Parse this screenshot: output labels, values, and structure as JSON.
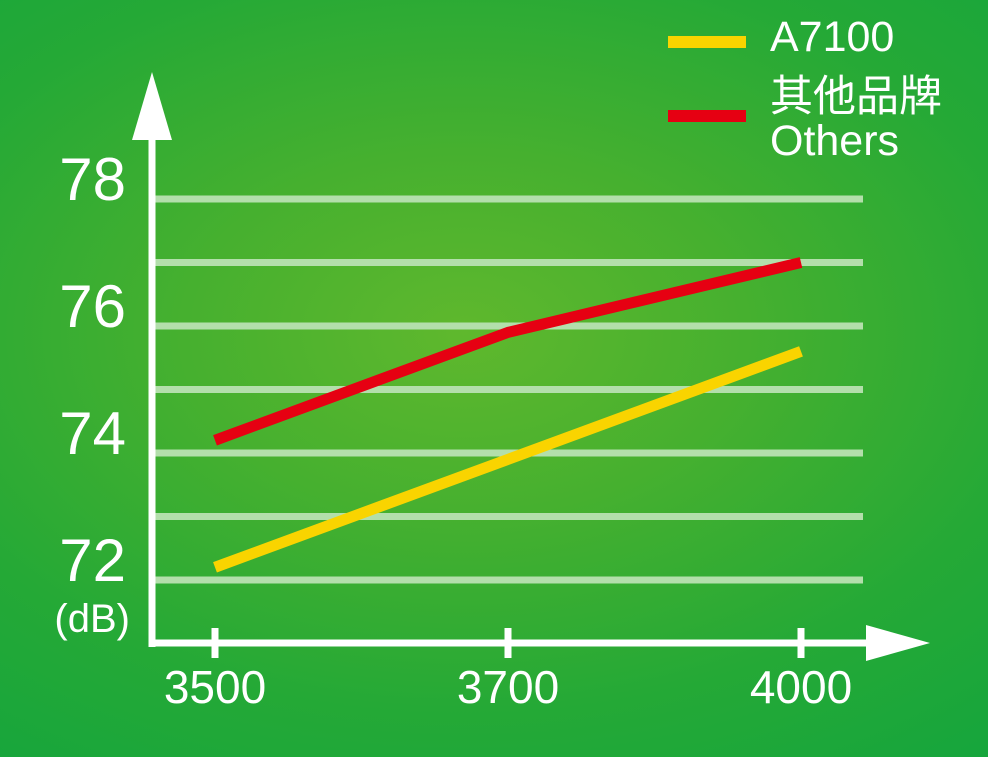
{
  "chart_data": {
    "type": "line",
    "categories": [
      "3500",
      "3700",
      "4000"
    ],
    "series": [
      {
        "id": "a7100",
        "name": "A7100",
        "color": "#f9d400",
        "values": [
          72.2,
          73.9,
          75.6
        ]
      },
      {
        "id": "others",
        "name": "其他品牌",
        "name_en": "Others",
        "color": "#e60012",
        "values": [
          74.2,
          75.9,
          77.0
        ]
      }
    ],
    "ylabel": "(dB)",
    "y_tick_labels": [
      78,
      76,
      74,
      72
    ],
    "gridline_values": [
      72,
      73,
      74,
      75,
      76,
      77,
      78
    ],
    "ylim": [
      72,
      78
    ],
    "grid": "horizontal",
    "legend_position": "top-right"
  },
  "legend": {
    "items": [
      {
        "label": "A7100",
        "color": "#f9d400"
      },
      {
        "label_zh": "其他品牌",
        "label_en": "Others",
        "color": "#e60012"
      }
    ]
  },
  "colors": {
    "background_center": "#5fb82d",
    "background_edge": "#10a43f",
    "gridline": "#b3dfab",
    "axis": "#ffffff",
    "text": "#ffffff"
  }
}
